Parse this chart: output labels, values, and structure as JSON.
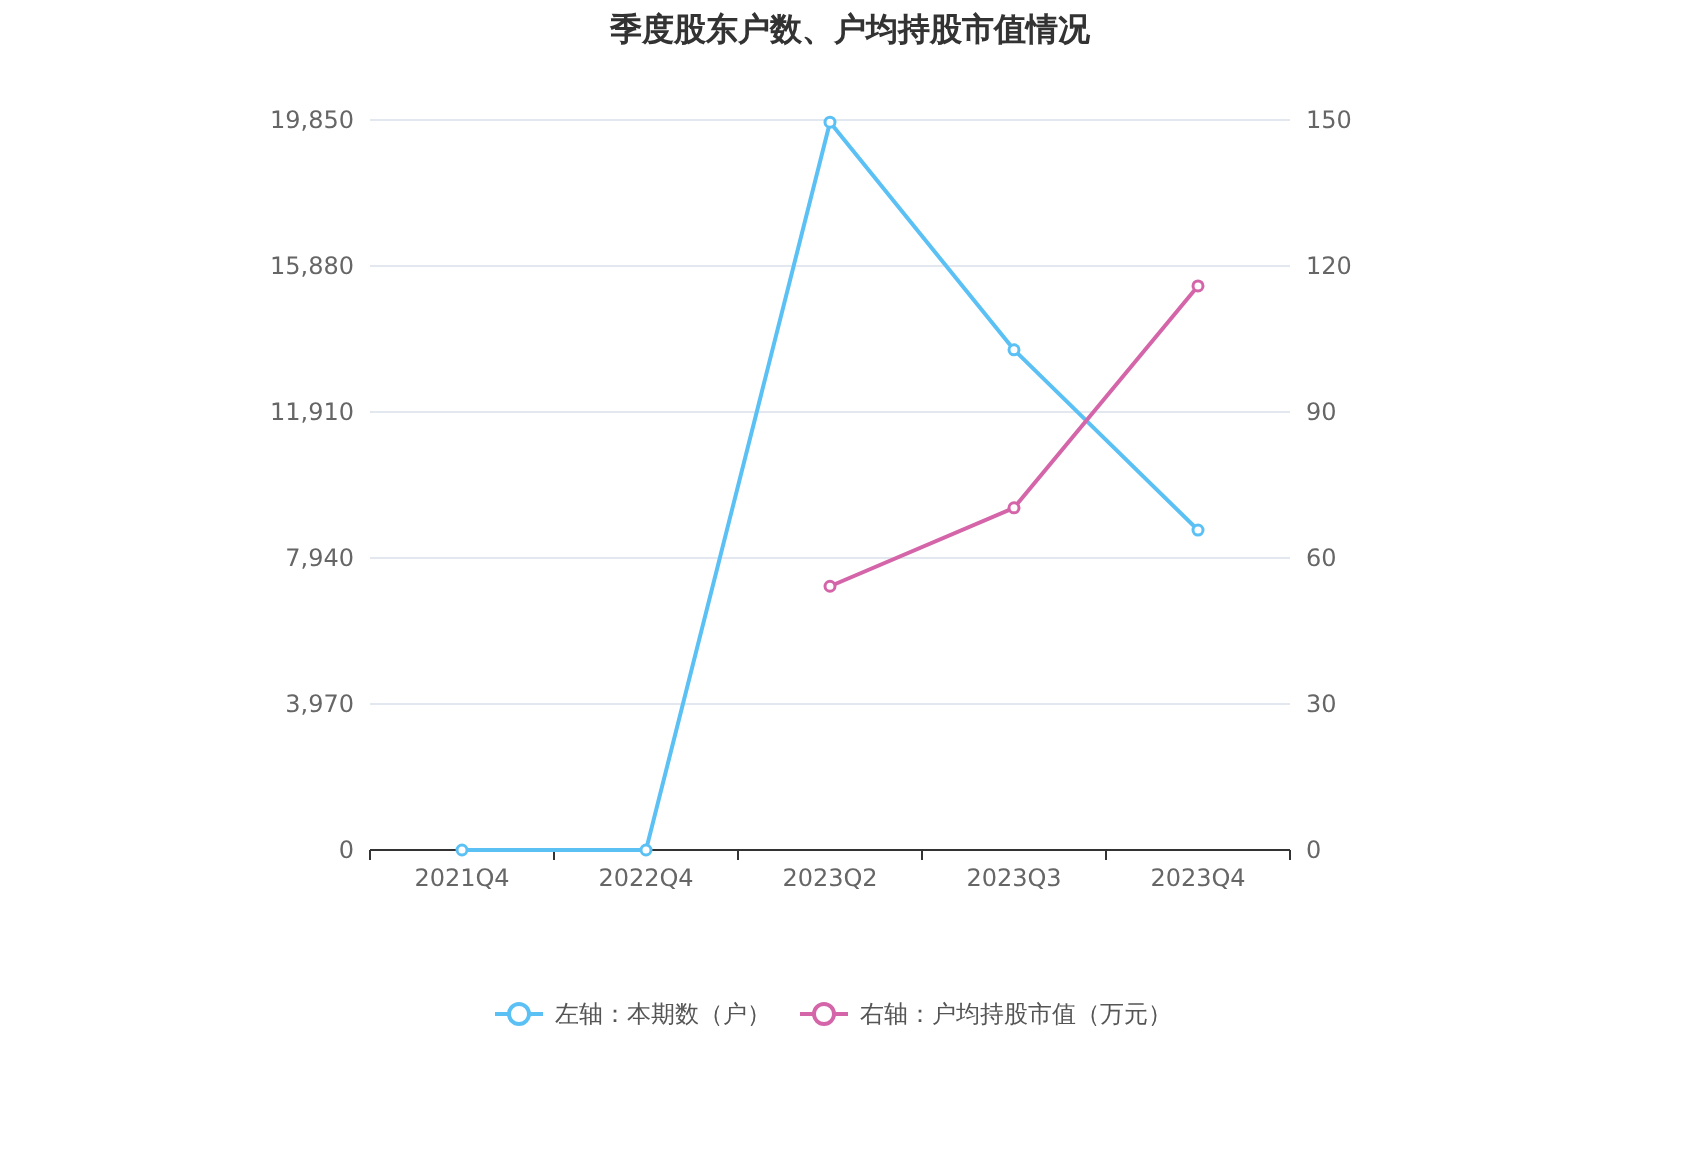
{
  "chart_data": {
    "type": "line",
    "title": "季度股东户数、户均持股市值情况",
    "categories": [
      "2021Q4",
      "2022Q4",
      "2023Q2",
      "2023Q3",
      "2023Q4"
    ],
    "series": [
      {
        "name": "左轴：本期数（户）",
        "color": "#5bc1f5",
        "values": [
          0,
          0,
          19790,
          13600,
          8700
        ]
      },
      {
        "name": "右轴：户均持股市值（万元）",
        "color": "#d465a9",
        "axis": "y2",
        "values": [
          null,
          null,
          54.2,
          70.3,
          115.9
        ]
      }
    ],
    "ylim": [
      0,
      19850
    ],
    "yticks": [
      0,
      {
        "value": 3970,
        "label": "3,970"
      },
      {
        "value": 7940,
        "label": "7,940"
      },
      {
        "value": 11910,
        "label": "11,910"
      },
      {
        "value": 15880,
        "label": "15,880"
      },
      {
        "value": 19850,
        "label": "19,850"
      }
    ],
    "y2lim": [
      0,
      150
    ],
    "y2ticks": [
      0,
      30,
      60,
      90,
      120,
      150
    ],
    "grid": "y",
    "legend": "bottom",
    "marker": "circle"
  }
}
